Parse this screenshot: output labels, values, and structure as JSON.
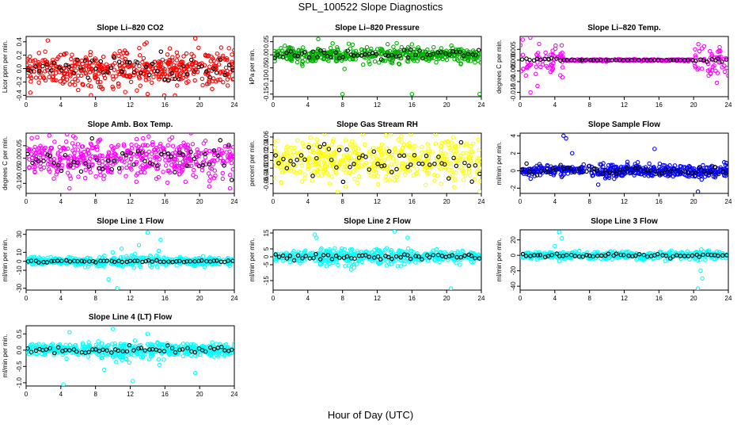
{
  "figure": {
    "title": "SPL_100522  Slope Diagnostics",
    "xlabel": "Hour of Day (UTC)"
  },
  "chart_data": [
    {
      "type": "scatter",
      "title": "Slope Li–820 CO2",
      "ylabel": "Licor ppm per min.",
      "xlim": [
        0,
        24
      ],
      "ylim": [
        -0.42,
        0.48
      ],
      "xticks": [
        0,
        4,
        8,
        12,
        16,
        20,
        24
      ],
      "yticks": [
        -0.4,
        -0.2,
        0.0,
        0.2,
        0.4
      ],
      "ytick_labels": [
        "-0.4",
        "-0.2",
        "0.0",
        "0.2",
        "0.4"
      ],
      "color": "#ff0000",
      "scatter_sd": 0.12,
      "outliers": [
        [
          2.5,
          0.42
        ],
        [
          19.5,
          0.45
        ],
        [
          14,
          -0.38
        ],
        [
          6,
          -0.32
        ]
      ],
      "series": [
        {
          "name": "",
          "color": "#ff0000",
          "n": 480,
          "sd": 0.13
        },
        {
          "name": "",
          "color": "#000000",
          "n": 55,
          "sd": 0.1
        }
      ]
    },
    {
      "type": "scatter",
      "title": "Slope Li–820 Pressure",
      "ylabel": "kPa per min.",
      "xlim": [
        0,
        24
      ],
      "ylim": [
        -0.16,
        0.07
      ],
      "xticks": [
        0,
        4,
        8,
        12,
        16,
        20,
        24
      ],
      "yticks": [
        -0.15,
        -0.1,
        -0.05,
        0.0,
        0.05
      ],
      "ytick_labels": [
        "-0.15",
        "-0.10",
        "-0.05",
        "0.00",
        "0.05"
      ],
      "color": "#00b000",
      "scatter_sd": 0.012,
      "outliers": [
        [
          5.2,
          0.06
        ],
        [
          8,
          -0.15
        ],
        [
          16,
          -0.15
        ],
        [
          23.8,
          -0.15
        ],
        [
          16,
          0.04
        ]
      ],
      "series": [
        {
          "name": "",
          "color": "#00b000",
          "n": 480,
          "sd": 0.014
        },
        {
          "name": "",
          "color": "#000000",
          "n": 55,
          "sd": 0.008
        }
      ]
    },
    {
      "type": "scatter",
      "title": "Slope Li–820 Temp.",
      "ylabel": "degrees C per min.",
      "xlim": [
        0,
        24
      ],
      "ylim": [
        -0.017,
        0.011
      ],
      "xticks": [
        0,
        4,
        8,
        12,
        16,
        20,
        24
      ],
      "yticks": [
        -0.015,
        -0.01,
        -0.005,
        0.0,
        0.005
      ],
      "ytick_labels": [
        "-0.015",
        "-0.01",
        "-0.005",
        "0.000",
        "0.005"
      ],
      "color": "#ff00ff",
      "scatter_sd": 0.0035,
      "quiet_range": [
        5,
        20
      ],
      "outliers": [
        [
          0.3,
          0.0095
        ],
        [
          1.2,
          -0.015
        ],
        [
          2,
          -0.012
        ],
        [
          23,
          0.006
        ]
      ],
      "series": [
        {
          "name": "",
          "color": "#ff00ff",
          "n": 300,
          "sd": 0.004
        },
        {
          "name": "",
          "color": "#000000",
          "n": 55,
          "sd": 0.0005
        }
      ]
    },
    {
      "type": "scatter",
      "title": "Slope Amb. Box Temp.",
      "ylabel": "degrees C per min.",
      "xlim": [
        0,
        24
      ],
      "ylim": [
        -0.14,
        0.1
      ],
      "xticks": [
        0,
        4,
        8,
        12,
        16,
        20,
        24
      ],
      "yticks": [
        -0.1,
        -0.05,
        0.0,
        0.05
      ],
      "ytick_labels": [
        "-0.10",
        "-0.05",
        "0.00",
        "0.05"
      ],
      "color": "#ff00ff",
      "scatter_sd": 0.035,
      "outliers": [
        [
          19,
          0.1
        ],
        [
          5,
          -0.12
        ],
        [
          23.5,
          -0.12
        ]
      ],
      "series": [
        {
          "name": "",
          "color": "#ff00ff",
          "n": 480,
          "sd": 0.035
        },
        {
          "name": "",
          "color": "#000000",
          "n": 55,
          "sd": 0.03
        }
      ]
    },
    {
      "type": "scatter",
      "title": "Slope Gas Stream RH",
      "ylabel": "percent per min.",
      "xlim": [
        0,
        24
      ],
      "ylim": [
        -0.085,
        0.07
      ],
      "xticks": [
        0,
        4,
        8,
        12,
        16,
        20,
        24
      ],
      "yticks": [
        -0.06,
        -0.04,
        -0.02,
        0.0,
        0.02,
        0.04,
        0.06
      ],
      "ytick_labels": [
        "-0.06",
        "-0.04",
        "-0.02",
        "0.00",
        "0.02",
        "0.04",
        "0.06"
      ],
      "color": "#ffff00",
      "scatter_sd": 0.028,
      "outliers": [
        [
          13,
          0.065
        ],
        [
          23.8,
          -0.08
        ]
      ],
      "series": [
        {
          "name": "",
          "color": "#ffff00",
          "n": 480,
          "sd": 0.028
        },
        {
          "name": "",
          "color": "#000000",
          "n": 55,
          "sd": 0.026
        }
      ]
    },
    {
      "type": "scatter",
      "title": "Slope Sample Flow",
      "ylabel": "ml/min per min.",
      "xlim": [
        0,
        24
      ],
      "ylim": [
        -2.6,
        4.3
      ],
      "xticks": [
        0,
        4,
        8,
        12,
        16,
        20,
        24
      ],
      "yticks": [
        -2,
        0,
        2,
        4
      ],
      "ytick_labels": [
        "-2",
        "0",
        "2",
        "4"
      ],
      "color": "#0000ff",
      "scatter_sd": 0.35,
      "outliers": [
        [
          5,
          4.0
        ],
        [
          5.3,
          3.7
        ],
        [
          15.5,
          2.5
        ],
        [
          20.5,
          -2.4
        ],
        [
          9,
          -1.6
        ],
        [
          6,
          2.0
        ]
      ],
      "series": [
        {
          "name": "",
          "color": "#0000ff",
          "n": 480,
          "sd": 0.35
        },
        {
          "name": "",
          "color": "#000000",
          "n": 55,
          "sd": 0.25
        }
      ]
    },
    {
      "type": "scatter",
      "title": "Slope Line 1 Flow",
      "ylabel": "ml/min per min.",
      "xlim": [
        0,
        24
      ],
      "ylim": [
        -32,
        35
      ],
      "xticks": [
        0,
        4,
        8,
        12,
        16,
        20,
        24
      ],
      "yticks": [
        -30,
        -10,
        0,
        10,
        30
      ],
      "ytick_labels": [
        "-30",
        "-10",
        "0",
        "10",
        "30"
      ],
      "color": "#00ffff",
      "scatter_sd": 2.0,
      "burst_range": [
        8,
        16
      ],
      "outliers": [
        [
          14,
          32
        ],
        [
          10.5,
          -30
        ],
        [
          9.5,
          -20
        ],
        [
          15.5,
          24
        ],
        [
          13,
          18
        ],
        [
          11,
          14
        ]
      ],
      "series": [
        {
          "name": "",
          "color": "#00ffff",
          "n": 480,
          "sd": 2.0
        },
        {
          "name": "",
          "color": "#000000",
          "n": 55,
          "sd": 0.6
        }
      ]
    },
    {
      "type": "scatter",
      "title": "Slope Line 2 Flow",
      "ylabel": "ml/min per min.",
      "xlim": [
        0,
        24
      ],
      "ylim": [
        -21,
        17
      ],
      "xticks": [
        0,
        4,
        8,
        12,
        16,
        20,
        24
      ],
      "yticks": [
        -15,
        -5,
        0,
        5,
        15
      ],
      "ytick_labels": [
        "-15",
        "-5",
        "0",
        "5",
        "15"
      ],
      "color": "#00ffff",
      "scatter_sd": 1.6,
      "burst_range": [
        4,
        16
      ],
      "outliers": [
        [
          4.8,
          14
        ],
        [
          5,
          12
        ],
        [
          14,
          16
        ],
        [
          15.5,
          12
        ],
        [
          20.5,
          -20
        ],
        [
          9,
          -8
        ]
      ],
      "series": [
        {
          "name": "",
          "color": "#00ffff",
          "n": 480,
          "sd": 1.6
        },
        {
          "name": "",
          "color": "#000000",
          "n": 55,
          "sd": 1.0
        }
      ]
    },
    {
      "type": "scatter",
      "title": "Slope Line 3 Flow",
      "ylabel": "ml/min per min.",
      "xlim": [
        0,
        24
      ],
      "ylim": [
        -45,
        33
      ],
      "xticks": [
        0,
        4,
        8,
        12,
        16,
        20,
        24
      ],
      "yticks": [
        -40,
        -20,
        0,
        20
      ],
      "ytick_labels": [
        "-40",
        "-20",
        "0",
        "20"
      ],
      "color": "#00ffff",
      "scatter_sd": 2.2,
      "burst_range": [
        20,
        22
      ],
      "outliers": [
        [
          4.5,
          30
        ],
        [
          4.8,
          22
        ],
        [
          20.5,
          -43
        ],
        [
          21,
          -30
        ],
        [
          20.8,
          -20
        ],
        [
          4,
          12
        ]
      ],
      "series": [
        {
          "name": "",
          "color": "#00ffff",
          "n": 480,
          "sd": 2.2
        },
        {
          "name": "",
          "color": "#000000",
          "n": 55,
          "sd": 1.2
        }
      ]
    },
    {
      "type": "scatter",
      "title": "Slope Line 4 (LT) Flow",
      "ylabel": "ml/min per min.",
      "xlim": [
        0,
        24
      ],
      "ylim": [
        -1.1,
        0.75
      ],
      "xticks": [
        0,
        4,
        8,
        12,
        16,
        20,
        24
      ],
      "yticks": [
        -1.0,
        -0.5,
        0.0,
        0.5
      ],
      "ytick_labels": [
        "-1.0",
        "-0.5",
        "0.0",
        "0.5"
      ],
      "color": "#00ffff",
      "scatter_sd": 0.09,
      "burst_range": [
        8,
        16
      ],
      "outliers": [
        [
          4.3,
          -1.05
        ],
        [
          12.3,
          -0.95
        ],
        [
          10,
          0.65
        ],
        [
          5,
          0.55
        ],
        [
          9,
          -0.6
        ],
        [
          14,
          0.5
        ],
        [
          19.5,
          -0.7
        ]
      ],
      "series": [
        {
          "name": "",
          "color": "#00ffff",
          "n": 480,
          "sd": 0.09
        },
        {
          "name": "",
          "color": "#000000",
          "n": 55,
          "sd": 0.06
        }
      ]
    }
  ]
}
